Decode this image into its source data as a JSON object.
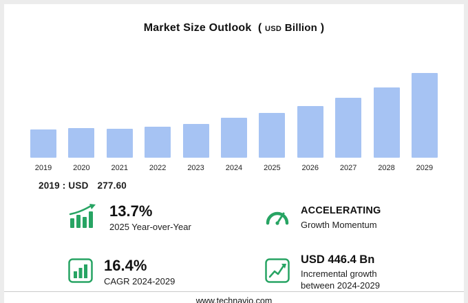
{
  "header": {
    "title": "Market Size Outlook",
    "paren_open": "(",
    "unit_prefix": "USD",
    "unit": "Billion",
    "paren_close": ")"
  },
  "chart_data": {
    "type": "bar",
    "title": "Market Size Outlook (USD Billion)",
    "categories": [
      "2019",
      "2020",
      "2021",
      "2022",
      "2023",
      "2024",
      "2025",
      "2026",
      "2027",
      "2028",
      "2029"
    ],
    "values": [
      277.6,
      293,
      287,
      304,
      336,
      392.7,
      446.5,
      512,
      592,
      696,
      839.1
    ],
    "xlabel": "",
    "ylabel": "",
    "ylim": [
      0,
      840
    ],
    "grid": false,
    "legend": "none",
    "bar_color": "#a6c3f3"
  },
  "base_note": {
    "prefix": "2019 : USD",
    "value": "277.60"
  },
  "stats": [
    {
      "icon": "growth-bars-arrow-icon",
      "value": "13.7%",
      "label": "2025 Year-over-Year"
    },
    {
      "icon": "speedometer-icon",
      "value": "ACCELERATING",
      "label": "Growth Momentum"
    },
    {
      "icon": "bar-chart-outline-icon",
      "value": "16.4%",
      "label": "CAGR 2024-2029"
    },
    {
      "icon": "line-chart-outline-icon",
      "value": "USD 446.4 Bn",
      "label": "Incremental growth between 2024-2029"
    }
  ],
  "colors": {
    "accent_green": "#27a463",
    "bar_blue": "#a6c3f3"
  },
  "footer": {
    "url": "www.technavio.com"
  }
}
